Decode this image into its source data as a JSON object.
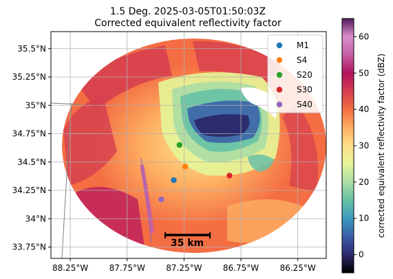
{
  "chart_data": {
    "type": "heatmap",
    "title": "1.5 Deg. 2025-03-05T01:50:03Z",
    "subtitle": "Corrected equivalent reflectivity factor",
    "xlabel": "",
    "ylabel": "",
    "x_ticks": [
      "88.25°W",
      "87.75°W",
      "87.25°W",
      "86.75°W",
      "86.25°W"
    ],
    "x_tick_values": [
      -88.25,
      -87.75,
      -87.25,
      -86.75,
      -86.25
    ],
    "y_ticks": [
      "33.75°N",
      "34°N",
      "34.25°N",
      "34.5°N",
      "34.75°N",
      "35°N",
      "35.25°N",
      "35.5°N"
    ],
    "y_tick_values": [
      33.75,
      34.0,
      34.25,
      34.5,
      34.75,
      35.0,
      35.25,
      35.5
    ],
    "xlim": [
      -88.42,
      -86.0
    ],
    "ylim": [
      33.65,
      35.65
    ],
    "grid": true,
    "colorbar": {
      "label": "corrected equivalent reflectivity factor (dBZ)",
      "range": [
        -5,
        65
      ],
      "ticks": [
        "0",
        "10",
        "20",
        "30",
        "40",
        "50",
        "60"
      ],
      "tick_values": [
        0,
        10,
        20,
        30,
        40,
        50,
        60
      ],
      "colormap": "Spectral_r",
      "stops": [
        "#000000",
        "#2b2a6b",
        "#3a5da8",
        "#3a9bbd",
        "#66c2a5",
        "#abdda4",
        "#e6f598",
        "#fee08b",
        "#fdae61",
        "#f46d43",
        "#d53e4f",
        "#b3125e",
        "#c65fa6",
        "#d98fcb",
        "#541a5e"
      ]
    },
    "legend_position": "top-right",
    "series": [
      {
        "name": "M1",
        "x": [
          -87.34
        ],
        "y": [
          34.34
        ],
        "color": "#1f77b4"
      },
      {
        "name": "S4",
        "x": [
          -87.24
        ],
        "y": [
          34.46
        ],
        "color": "#ff7f0e"
      },
      {
        "name": "S20",
        "x": [
          -87.29
        ],
        "y": [
          34.65
        ],
        "color": "#2ca02c"
      },
      {
        "name": "S30",
        "x": [
          -86.85
        ],
        "y": [
          34.38
        ],
        "color": "#d62728"
      },
      {
        "name": "S40",
        "x": [
          -87.45
        ],
        "y": [
          34.17
        ],
        "color": "#9467bd"
      }
    ],
    "scale_bar": {
      "label": "35 km"
    }
  }
}
